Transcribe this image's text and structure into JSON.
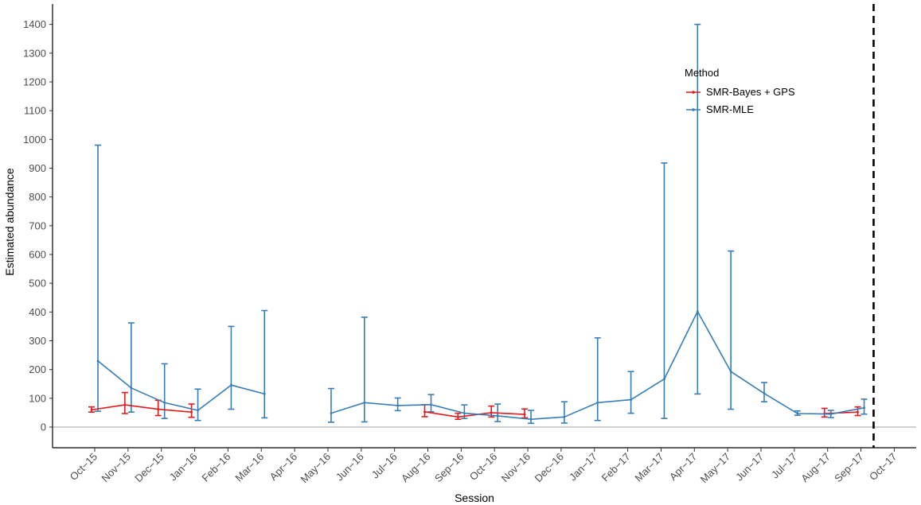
{
  "chart_data": {
    "type": "line",
    "title": "",
    "xlabel": "Session",
    "ylabel": "Estimated abundance",
    "ylim": [
      -70,
      1470
    ],
    "y_ticks": [
      0,
      100,
      200,
      300,
      400,
      500,
      600,
      700,
      800,
      900,
      1000,
      1100,
      1200,
      1300,
      1400
    ],
    "categories": [
      "Oct−15",
      "Nov−15",
      "Dec−15",
      "Jan−16",
      "Feb−16",
      "Mar−16",
      "Apr−16",
      "May−16",
      "Jun−16",
      "Jul−16",
      "Aug−16",
      "Sep−16",
      "Oct−16",
      "Nov−16",
      "Dec−16",
      "Jan−17",
      "Feb−17",
      "Mar−17",
      "Apr−17",
      "May−17",
      "Jun−17",
      "Jul−17",
      "Aug−17",
      "Sep−17",
      "Oct−17"
    ],
    "zero_reference_line": 0,
    "vertical_dashed_line_between": [
      "Sep−17",
      "Oct−17"
    ],
    "grid": false,
    "legend": {
      "title": "Method",
      "placement": "top-right"
    },
    "series": [
      {
        "name": "SMR-Bayes + GPS",
        "color": "#e41a1c",
        "segments": [
          [
            {
              "x": "Oct−15",
              "y": 60,
              "lower": 52,
              "upper": 70
            },
            {
              "x": "Nov−15",
              "y": 77,
              "lower": 47,
              "upper": 120
            },
            {
              "x": "Dec−15",
              "y": 62,
              "lower": 40,
              "upper": 93
            },
            {
              "x": "Jan−16",
              "y": 52,
              "lower": 34,
              "upper": 80
            }
          ],
          [
            {
              "x": "Aug−16",
              "y": 53,
              "lower": 36,
              "upper": 78
            },
            {
              "x": "Sep−16",
              "y": 35,
              "lower": 27,
              "upper": 48
            },
            {
              "x": "Oct−16",
              "y": 50,
              "lower": 35,
              "upper": 73
            },
            {
              "x": "Nov−16",
              "y": 44,
              "lower": 32,
              "upper": 63
            }
          ],
          [
            {
              "x": "Aug−17",
              "y": 47,
              "lower": 35,
              "upper": 65
            },
            {
              "x": "Sep−17",
              "y": 52,
              "lower": 40,
              "upper": 70
            }
          ]
        ]
      },
      {
        "name": "SMR-MLE",
        "color": "#377eb8",
        "segments": [
          [
            {
              "x": "Oct−15",
              "y": 230,
              "lower": 55,
              "upper": 980
            },
            {
              "x": "Nov−15",
              "y": 136,
              "lower": 52,
              "upper": 362
            },
            {
              "x": "Dec−15",
              "y": 85,
              "lower": 30,
              "upper": 220
            },
            {
              "x": "Jan−16",
              "y": 58,
              "lower": 23,
              "upper": 132
            },
            {
              "x": "Feb−16",
              "y": 146,
              "lower": 62,
              "upper": 350
            },
            {
              "x": "Mar−16",
              "y": 115,
              "lower": 32,
              "upper": 405
            }
          ],
          [
            {
              "x": "May−16",
              "y": 48,
              "lower": 17,
              "upper": 134
            },
            {
              "x": "Jun−16",
              "y": 85,
              "lower": 18,
              "upper": 382
            },
            {
              "x": "Jul−16",
              "y": 75,
              "lower": 57,
              "upper": 101
            },
            {
              "x": "Aug−16",
              "y": 78,
              "lower": 53,
              "upper": 113
            },
            {
              "x": "Sep−16",
              "y": 48,
              "lower": 30,
              "upper": 77
            },
            {
              "x": "Oct−16",
              "y": 39,
              "lower": 19,
              "upper": 80
            },
            {
              "x": "Nov−16",
              "y": 27,
              "lower": 13,
              "upper": 58
            },
            {
              "x": "Dec−16",
              "y": 35,
              "lower": 14,
              "upper": 88
            },
            {
              "x": "Jan−17",
              "y": 85,
              "lower": 23,
              "upper": 310
            },
            {
              "x": "Feb−17",
              "y": 95,
              "lower": 48,
              "upper": 193
            },
            {
              "x": "Mar−17",
              "y": 167,
              "lower": 30,
              "upper": 918
            },
            {
              "x": "Apr−17",
              "y": 402,
              "lower": 115,
              "upper": 1400
            },
            {
              "x": "May−17",
              "y": 193,
              "lower": 62,
              "upper": 612
            },
            {
              "x": "Jun−17",
              "y": 117,
              "lower": 88,
              "upper": 155
            },
            {
              "x": "Jul−17",
              "y": 47,
              "lower": 41,
              "upper": 56
            },
            {
              "x": "Aug−17",
              "y": 45,
              "lower": 33,
              "upper": 58
            },
            {
              "x": "Sep−17",
              "y": 67,
              "lower": 45,
              "upper": 97
            }
          ]
        ]
      }
    ]
  }
}
